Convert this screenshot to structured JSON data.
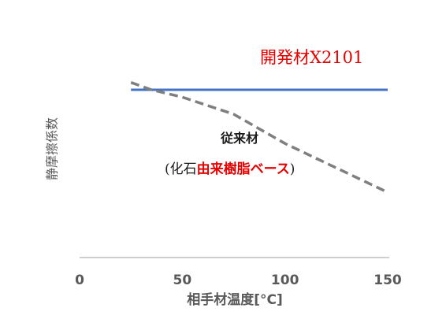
{
  "chart_data": {
    "type": "line",
    "title": "",
    "xlabel": "相手材温度[°C]",
    "ylabel": "静摩擦係数",
    "xlim": [
      0,
      150
    ],
    "xticks": [
      0,
      50,
      100,
      150
    ],
    "xtick_labels": [
      "0",
      "50",
      "100",
      "150"
    ],
    "y_ticks_shown": false,
    "grid": false,
    "series": [
      {
        "name": "開発材X2101",
        "style": "solid",
        "color": "#4472c4",
        "x": [
          25,
          150
        ],
        "y": [
          1.0,
          1.0
        ]
      },
      {
        "name": "従来材",
        "note_prefix": "(化石",
        "note_highlight": "由来樹脂ベース",
        "note_suffix": ")",
        "style": "dashed",
        "color": "#7f7f7f",
        "x": [
          25,
          35,
          50,
          75,
          100,
          125,
          150
        ],
        "y": [
          1.015,
          1.0,
          0.985,
          0.95,
          0.89,
          0.84,
          0.79
        ]
      }
    ],
    "colors": {
      "axis": "#bfbfbf",
      "text": "#595959",
      "accent_red": "#e60000"
    }
  }
}
